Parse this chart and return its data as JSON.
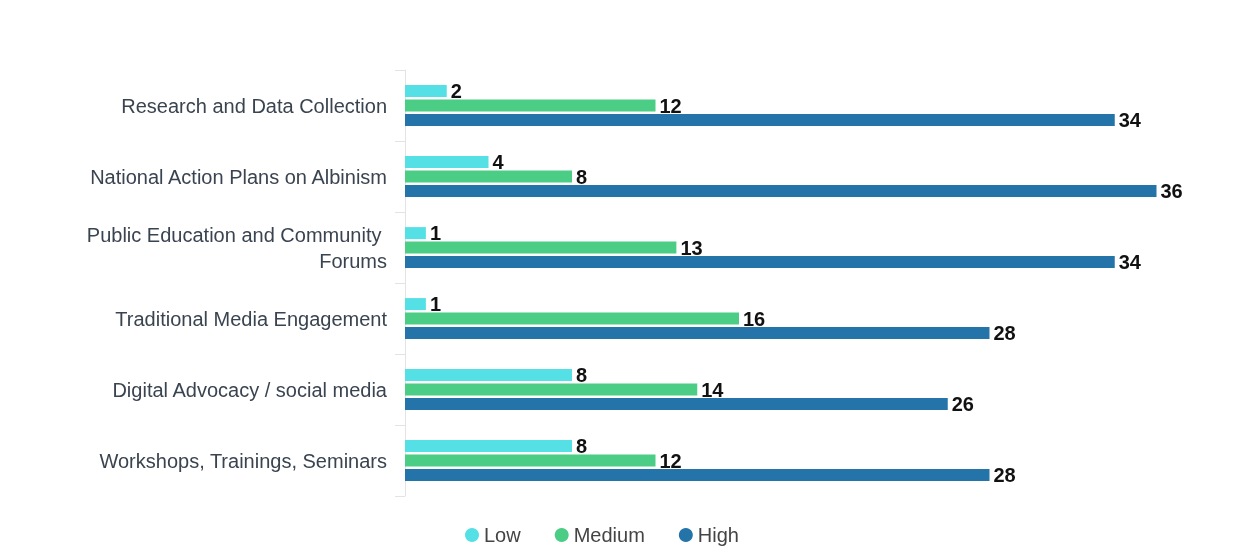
{
  "chart_data": {
    "type": "bar",
    "orientation": "horizontal",
    "categories": [
      "Research and Data Collection",
      "National Action Plans on Albinism",
      "Public Education and Community Forums",
      "Traditional Media Engagement",
      "Digital Advocacy / social media",
      "Workshops, Trainings, Seminars"
    ],
    "series": [
      {
        "name": "Low",
        "color": "#55e0e6",
        "values": [
          2,
          4,
          1,
          1,
          8,
          8
        ]
      },
      {
        "name": "Medium",
        "color": "#4ccd85",
        "values": [
          12,
          8,
          13,
          16,
          14,
          12
        ]
      },
      {
        "name": "High",
        "color": "#2574a9",
        "values": [
          34,
          36,
          34,
          28,
          26,
          28
        ]
      }
    ],
    "tick_labels": "y",
    "data_labels": true,
    "legend": "bottom"
  }
}
